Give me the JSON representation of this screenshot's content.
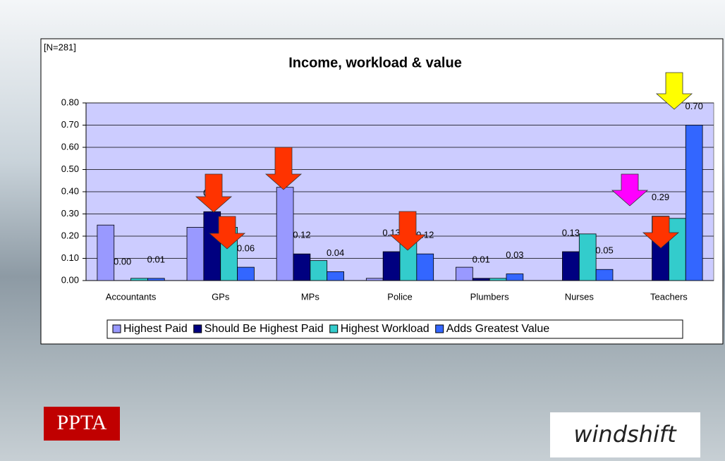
{
  "chart_data": {
    "type": "bar",
    "title": "Income, workload & value",
    "note": "[N=281]",
    "categories": [
      "Accountants",
      "GPs",
      "MPs",
      "Police",
      "Plumbers",
      "Nurses",
      "Teachers"
    ],
    "series": [
      {
        "name": "Highest Paid",
        "color": "#9999ff",
        "values": [
          0.25,
          0.24,
          0.42,
          0.01,
          0.06,
          0,
          0
        ]
      },
      {
        "name": "Should Be Highest Paid",
        "color": "#000080",
        "values": [
          0.0,
          0.31,
          0.12,
          0.13,
          0.01,
          0.13,
          0.29
        ],
        "value_labels": [
          "0.00",
          "0.31",
          "0.12",
          "0.13",
          "0.01",
          "0.13",
          "0.29"
        ]
      },
      {
        "name": "Highest Workload",
        "color": "#33cccc",
        "values": [
          0.01,
          0.24,
          0.09,
          0.19,
          0.01,
          0.21,
          0.28
        ]
      },
      {
        "name": "Adds Greatest Value",
        "color": "#3366ff",
        "values": [
          0.01,
          0.06,
          0.04,
          0.12,
          0.03,
          0.05,
          0.7
        ],
        "value_labels": [
          "0.01",
          "0.06",
          "0.04",
          "0.12",
          "0.03",
          "0.05",
          "0.70"
        ]
      }
    ],
    "ylim": [
      0,
      0.8
    ],
    "yticks": [
      {
        "value": 0,
        "label": "0.00"
      },
      {
        "value": 0.1,
        "label": "0.10"
      },
      {
        "value": 0.2,
        "label": "0.20"
      },
      {
        "value": 0.3,
        "label": "0.30"
      },
      {
        "value": 0.4,
        "label": "0.40"
      },
      {
        "value": 0.5,
        "label": "0.50"
      },
      {
        "value": 0.6,
        "label": "0.60"
      },
      {
        "value": 0.7,
        "label": "0.70"
      },
      {
        "value": 0.8,
        "label": "0.80"
      }
    ],
    "grid": true,
    "plot_background": "#ccccff",
    "legend": "bottom"
  },
  "logos": [
    "PPTA",
    "windshift"
  ]
}
